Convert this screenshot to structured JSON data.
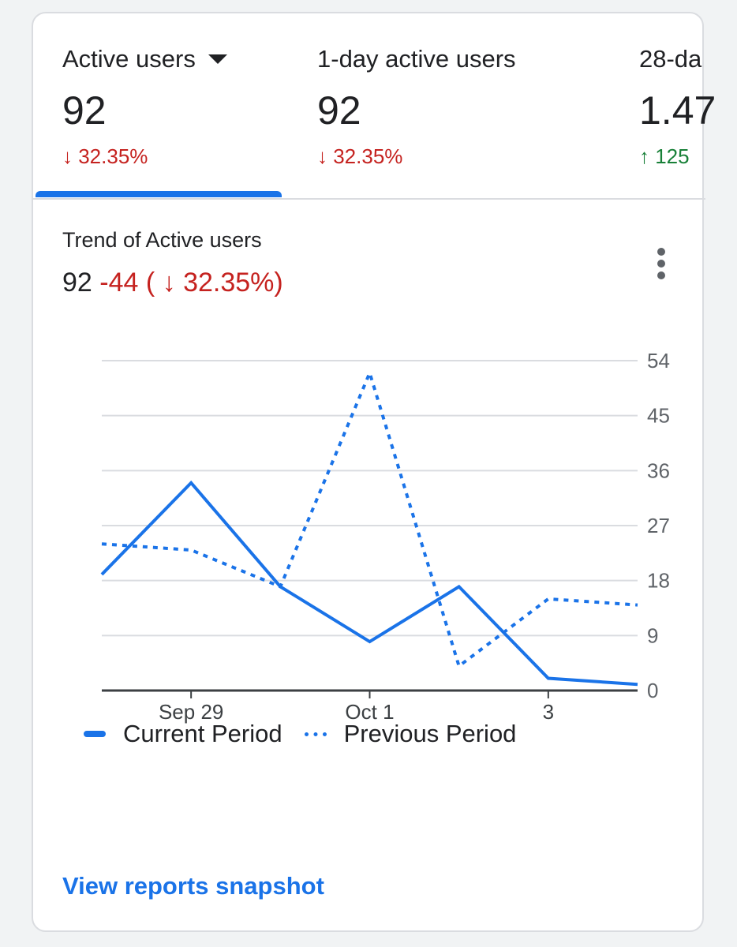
{
  "metrics": [
    {
      "label": "Active users",
      "value": "92",
      "delta": "↓ 32.35%",
      "direction": "down"
    },
    {
      "label": "1-day active users",
      "value": "92",
      "delta": "↓ 32.35%",
      "direction": "down"
    },
    {
      "label": "28-da",
      "value": "1.47",
      "delta": "↑ 125",
      "direction": "up"
    }
  ],
  "trend": {
    "title": "Trend of Active users",
    "value": "92",
    "change": "-44 ( ↓ 32.35%)"
  },
  "link": {
    "label": "View reports snapshot"
  },
  "colors": {
    "accent": "#1a73e8",
    "negative": "#c5221f",
    "positive": "#188038"
  },
  "chart_data": {
    "type": "line",
    "title": "",
    "x_labels": [
      "Sep 29",
      "Oct 1",
      "3"
    ],
    "x_label_positions": [
      1,
      3,
      5
    ],
    "y_ticks": [
      0,
      9,
      18,
      27,
      36,
      45,
      54
    ],
    "ylim": [
      0,
      54
    ],
    "grid": true,
    "legend_position": "bottom-left",
    "series": [
      {
        "name": "Current Period",
        "style": "solid",
        "values": [
          19,
          34,
          17,
          8,
          17,
          2,
          1
        ]
      },
      {
        "name": "Previous Period",
        "style": "dotted",
        "values": [
          24,
          23,
          17,
          52,
          4,
          15,
          14
        ]
      }
    ]
  }
}
